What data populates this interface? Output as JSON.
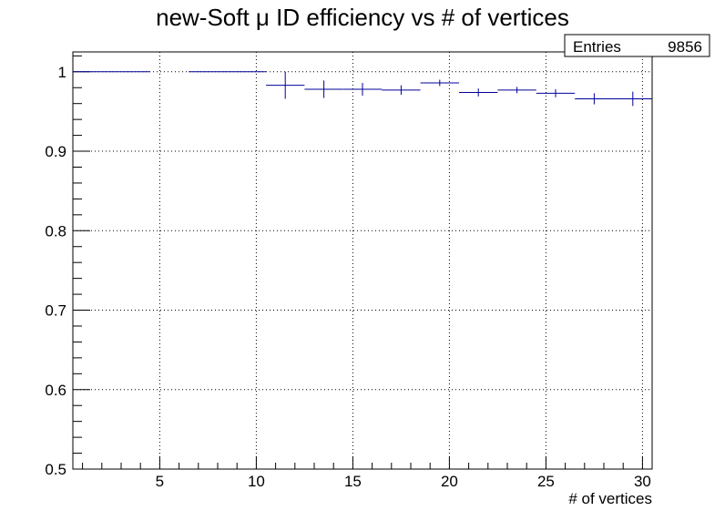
{
  "chart_data": {
    "type": "scatter",
    "title": "new-Soft μ ID efficiency vs # of vertices",
    "xlabel": "# of vertices",
    "ylabel": "",
    "xlim": [
      0.5,
      30.5
    ],
    "ylim": [
      0.5,
      1.025
    ],
    "xticks": [
      5,
      10,
      15,
      20,
      25,
      30
    ],
    "yticks": [
      0.5,
      0.6,
      0.7,
      0.8,
      0.9,
      1
    ],
    "ytick_labels": [
      "0.5",
      "0.6",
      "0.7",
      "0.8",
      "0.9",
      "1"
    ],
    "grid": true,
    "stats": {
      "label": "Entries",
      "value": "9856"
    },
    "series": [
      {
        "color": "#000099",
        "points": [
          {
            "xlo": 0.5,
            "xhi": 4.5,
            "y": 1.0,
            "err": 0.0
          },
          {
            "xlo": 6.5,
            "xhi": 10.5,
            "y": 1.0,
            "err": 0.0
          },
          {
            "xlo": 10.5,
            "xhi": 12.5,
            "y": 0.983,
            "err": 0.017
          },
          {
            "xlo": 12.5,
            "xhi": 14.5,
            "y": 0.978,
            "err": 0.011
          },
          {
            "xlo": 14.5,
            "xhi": 16.5,
            "y": 0.978,
            "err": 0.008
          },
          {
            "xlo": 16.5,
            "xhi": 18.5,
            "y": 0.977,
            "err": 0.006
          },
          {
            "xlo": 18.5,
            "xhi": 20.5,
            "y": 0.986,
            "err": 0.004
          },
          {
            "xlo": 20.5,
            "xhi": 22.5,
            "y": 0.974,
            "err": 0.005
          },
          {
            "xlo": 22.5,
            "xhi": 24.5,
            "y": 0.977,
            "err": 0.004
          },
          {
            "xlo": 24.5,
            "xhi": 26.5,
            "y": 0.973,
            "err": 0.005
          },
          {
            "xlo": 26.5,
            "xhi": 28.5,
            "y": 0.966,
            "err": 0.007
          },
          {
            "xlo": 28.5,
            "xhi": 30.5,
            "y": 0.966,
            "err": 0.009
          }
        ]
      }
    ]
  }
}
